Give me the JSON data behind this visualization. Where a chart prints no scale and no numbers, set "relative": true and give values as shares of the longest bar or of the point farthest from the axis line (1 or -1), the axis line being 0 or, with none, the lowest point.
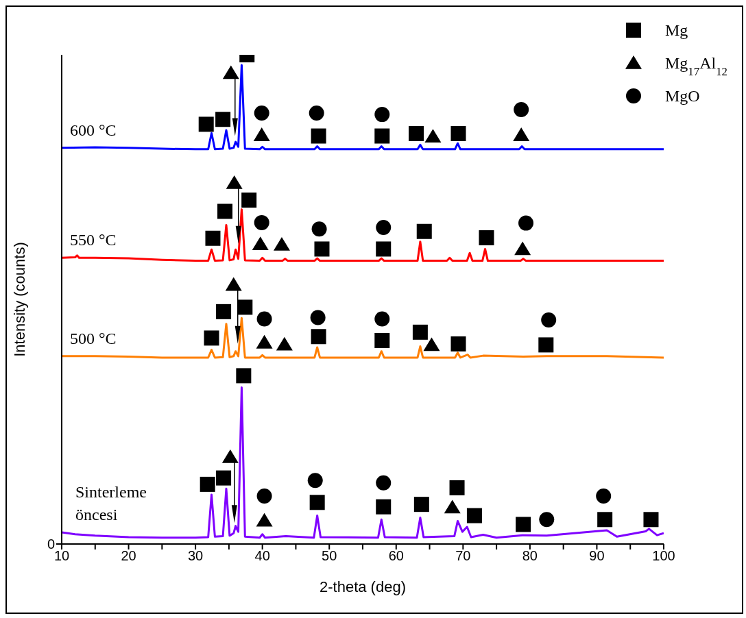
{
  "chart_data": {
    "type": "line",
    "relative": true,
    "xlabel": "2-theta (deg)",
    "ylabel": "Intensity (counts)",
    "xlim": [
      10,
      100
    ],
    "xticks": [
      10,
      {
        "value": 15,
        "label": null
      },
      20,
      {
        "value": 25,
        "label": null
      },
      30,
      {
        "value": 35,
        "label": null
      },
      40,
      {
        "value": 45,
        "label": null
      },
      50,
      {
        "value": 55,
        "label": null
      },
      60,
      {
        "value": 65,
        "label": null
      },
      70,
      {
        "value": 75,
        "label": null
      },
      80,
      {
        "value": 85,
        "label": null
      },
      90,
      {
        "value": 95,
        "label": null
      },
      100
    ],
    "legend": "top right",
    "marker": "none",
    "line_style": "solid",
    "annotations": [
      "0"
    ],
    "series": [
      {
        "name": "600 °C",
        "color": "#0000ff",
        "x": [
          10,
          15,
          20,
          25,
          30,
          31.9,
          32.4,
          32.9,
          34.1,
          34.6,
          35.1,
          35.7,
          36.0,
          36.4,
          36.9,
          37.4,
          39.6,
          40,
          40.4,
          47.8,
          48.2,
          48.6,
          57.4,
          57.8,
          58.2,
          63.2,
          63.6,
          64.0,
          68.8,
          69.2,
          69.6,
          78.4,
          78.8,
          79.2,
          85,
          90,
          95,
          100
        ],
        "values": [
          0.81,
          0.811,
          0.81,
          0.808,
          0.807,
          0.807,
          0.84,
          0.807,
          0.808,
          0.846,
          0.808,
          0.81,
          0.822,
          0.812,
          0.979,
          0.808,
          0.807,
          0.812,
          0.807,
          0.807,
          0.813,
          0.807,
          0.807,
          0.813,
          0.807,
          0.807,
          0.816,
          0.807,
          0.807,
          0.819,
          0.807,
          0.807,
          0.813,
          0.807,
          0.807,
          0.807,
          0.807,
          0.807
        ]
      },
      {
        "name": "550 °C",
        "color": "#ff0000",
        "x": [
          10,
          12,
          12.3,
          12.6,
          15,
          20,
          25,
          30,
          31.9,
          32.4,
          32.9,
          34.1,
          34.6,
          35.1,
          35.7,
          36.0,
          36.4,
          36.9,
          37.4,
          39.6,
          40,
          40.4,
          43,
          43.4,
          43.8,
          47.8,
          48.2,
          48.6,
          57.4,
          57.8,
          58.2,
          63.2,
          63.6,
          64.0,
          67.6,
          68.0,
          68.4,
          70.6,
          71.0,
          71.4,
          72.9,
          73.3,
          73.7,
          78.6,
          79,
          79.4,
          85,
          90,
          95,
          100
        ],
        "values": [
          0.585,
          0.586,
          0.59,
          0.585,
          0.585,
          0.584,
          0.581,
          0.579,
          0.579,
          0.602,
          0.579,
          0.58,
          0.652,
          0.58,
          0.582,
          0.602,
          0.583,
          0.684,
          0.58,
          0.579,
          0.585,
          0.579,
          0.579,
          0.583,
          0.579,
          0.579,
          0.584,
          0.579,
          0.579,
          0.584,
          0.579,
          0.579,
          0.618,
          0.579,
          0.579,
          0.585,
          0.579,
          0.579,
          0.595,
          0.579,
          0.579,
          0.603,
          0.579,
          0.579,
          0.583,
          0.579,
          0.579,
          0.579,
          0.579,
          0.579
        ]
      },
      {
        "name": "500 °C",
        "color": "#ff7f00",
        "x": [
          10,
          15,
          20,
          25,
          30,
          31.9,
          32.4,
          32.9,
          34.1,
          34.6,
          35.1,
          35.7,
          36.0,
          36.4,
          36.9,
          37.4,
          39.6,
          40,
          40.4,
          47.8,
          48.2,
          48.6,
          57.4,
          57.8,
          58.2,
          63.2,
          63.6,
          64.0,
          68.8,
          69.2,
          69.6,
          70.7,
          71.1,
          73,
          79,
          82.5,
          91.5,
          100
        ],
        "values": [
          0.384,
          0.384,
          0.383,
          0.381,
          0.381,
          0.381,
          0.397,
          0.381,
          0.382,
          0.45,
          0.382,
          0.384,
          0.394,
          0.384,
          0.462,
          0.381,
          0.381,
          0.386,
          0.381,
          0.381,
          0.402,
          0.381,
          0.381,
          0.394,
          0.381,
          0.381,
          0.404,
          0.381,
          0.381,
          0.391,
          0.381,
          0.387,
          0.381,
          0.385,
          0.383,
          0.384,
          0.384,
          0.381
        ]
      },
      {
        "name": "Sinterleme öncesi",
        "color": "#7f00ff",
        "x": [
          10,
          12,
          15,
          20,
          25,
          30,
          31.9,
          32.4,
          32.9,
          34.1,
          34.6,
          35.1,
          35.7,
          36.0,
          36.4,
          36.9,
          37.4,
          39.6,
          40,
          40.4,
          43.5,
          47.7,
          48.2,
          48.7,
          57.3,
          57.8,
          58.3,
          63.1,
          63.6,
          64.1,
          68.7,
          69.2,
          69.9,
          70.6,
          71.2,
          73,
          75,
          78.9,
          82.5,
          91.5,
          93,
          97.3,
          97.8,
          99,
          100
        ],
        "values": [
          0.024,
          0.02,
          0.017,
          0.014,
          0.013,
          0.013,
          0.014,
          0.101,
          0.015,
          0.016,
          0.113,
          0.017,
          0.022,
          0.037,
          0.025,
          0.32,
          0.015,
          0.013,
          0.02,
          0.013,
          0.016,
          0.013,
          0.058,
          0.014,
          0.013,
          0.05,
          0.014,
          0.013,
          0.054,
          0.014,
          0.016,
          0.047,
          0.025,
          0.035,
          0.014,
          0.019,
          0.013,
          0.018,
          0.017,
          0.028,
          0.015,
          0.026,
          0.031,
          0.018,
          0.022
        ]
      },
      {
        "name": "Mg",
        "type": "scatter",
        "marker": "square",
        "color": "#000000",
        "x": [
          31.6,
          34.1,
          37.7,
          48.4,
          57.9,
          63.0,
          69.3,
          32.6,
          34.4,
          38.0,
          48.9,
          58.1,
          64.2,
          73.5,
          32.4,
          34.2,
          37.4,
          48.4,
          57.9,
          63.6,
          69.3,
          82.4,
          31.8,
          34.2,
          37.2,
          48.2,
          58.1,
          63.8,
          69.1,
          71.7,
          79.0,
          91.2,
          98.1
        ],
        "values": [
          0.858,
          0.868,
          1.0,
          0.834,
          0.834,
          0.839,
          0.839,
          0.625,
          0.68,
          0.703,
          0.603,
          0.603,
          0.639,
          0.626,
          0.421,
          0.475,
          0.484,
          0.424,
          0.416,
          0.433,
          0.409,
          0.407,
          0.122,
          0.135,
          0.344,
          0.085,
          0.076,
          0.081,
          0.115,
          0.058,
          0.04,
          0.05,
          0.05
        ]
      },
      {
        "name": "Mg$_{17}$Al$_{12}$",
        "type": "scatter",
        "marker": "triangle",
        "color": "#000000",
        "x": [
          35.3,
          39.9,
          65.5,
          78.7,
          35.8,
          39.7,
          42.9,
          78.9,
          35.7,
          40.3,
          43.3,
          65.3,
          35.2,
          40.3,
          68.4
        ],
        "values": [
          0.963,
          0.836,
          0.833,
          0.836,
          0.738,
          0.613,
          0.612,
          0.603,
          0.53,
          0.412,
          0.408,
          0.407,
          0.178,
          0.048,
          0.075
        ]
      },
      {
        "name": "MgO",
        "type": "scatter",
        "marker": "circle",
        "color": "#000000",
        "x": [
          39.9,
          48.1,
          57.9,
          78.7,
          39.9,
          48.5,
          58.1,
          79.4,
          40.3,
          48.3,
          57.9,
          82.8,
          40.3,
          47.9,
          58.1,
          82.5,
          91.0
        ],
        "values": [
          0.881,
          0.881,
          0.878,
          0.888,
          0.657,
          0.644,
          0.647,
          0.656,
          0.46,
          0.463,
          0.46,
          0.458,
          0.098,
          0.13,
          0.125,
          0.05,
          0.098
        ]
      }
    ]
  }
}
